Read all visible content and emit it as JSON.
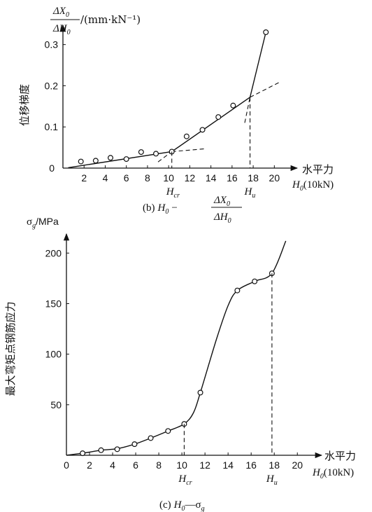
{
  "chart_data": [
    {
      "type": "scatter",
      "panel": "(b)",
      "caption": {
        "open": "(b)",
        "h": "H",
        "h_sub": "0",
        "dash": "−",
        "num": "ΔX",
        "num_sub": "0",
        "den": "ΔH",
        "den_sub": "0"
      },
      "ylabel": {
        "num": "ΔX",
        "num_sub": "0",
        "den": "ΔH",
        "den_sub": "0",
        "unit": "/(mm·kN⁻¹)",
        "side_text": "位移梯度"
      },
      "xlabel": {
        "line1": "水平力",
        "line2_var": "H",
        "line2_sub": "0",
        "line2_unit": "(10kN)"
      },
      "xlim": [
        0,
        21.5
      ],
      "ylim": [
        0,
        0.33
      ],
      "xticks": [
        2,
        4,
        6,
        8,
        10,
        12,
        14,
        16,
        18,
        20
      ],
      "yticks": [
        0,
        0.1,
        0.2,
        0.3
      ],
      "ytick_labels": [
        "0",
        "0.1",
        "0.2",
        "0.3"
      ],
      "x": [
        1.7,
        3.1,
        4.5,
        6.0,
        7.4,
        8.8,
        10.3,
        11.7,
        13.2,
        14.7,
        16.1,
        19.2
      ],
      "y": [
        0.016,
        0.018,
        0.025,
        0.022,
        0.039,
        0.035,
        0.04,
        0.077,
        0.093,
        0.124,
        0.152,
        0.33
      ],
      "fit_line": {
        "x": [
          0.5,
          10.3,
          17.7,
          19.2
        ],
        "y": [
          0.001,
          0.04,
          0.172,
          0.33
        ]
      },
      "dashed_extensions": [
        {
          "x": [
            10.3,
            13.5
          ],
          "y": [
            0.04,
            0.047
          ]
        },
        {
          "x": [
            9.0,
            10.3
          ],
          "y": [
            0.015,
            0.04
          ]
        },
        {
          "x": [
            17.7,
            20.6
          ],
          "y": [
            0.172,
            0.21
          ]
        },
        {
          "x": [
            17.2,
            17.7
          ],
          "y": [
            0.11,
            0.172
          ]
        }
      ],
      "markers": [
        {
          "x": 10.3,
          "y": 0.04,
          "var": "H",
          "sub": "cr"
        },
        {
          "x": 17.7,
          "y": 0.172,
          "var": "H",
          "sub": "u"
        }
      ]
    },
    {
      "type": "line",
      "panel": "(c)",
      "caption": {
        "open": "(c)",
        "h": "H",
        "h_sub": "0",
        "dash": "—",
        "sigma": "σ",
        "sigma_sub": "g"
      },
      "ylabel": {
        "text": "σ",
        "sub": "g",
        "unit": "/MPa",
        "side_text": "最大弯矩点钢筋应力"
      },
      "xlabel": {
        "line1": "水平力",
        "line2_var": "H",
        "line2_sub": "0",
        "line2_unit": "(10kN)"
      },
      "xlim": [
        0,
        21.5
      ],
      "ylim": [
        0,
        212
      ],
      "xticks": [
        0,
        2,
        4,
        6,
        8,
        10,
        12,
        14,
        16,
        18,
        20
      ],
      "yticks": [
        50,
        100,
        150,
        200
      ],
      "ytick_labels": [
        "50",
        "100",
        "150",
        "200"
      ],
      "x": [
        1.4,
        3.0,
        4.4,
        5.9,
        7.3,
        8.8,
        10.2,
        11.6,
        14.8,
        16.3,
        17.8
      ],
      "y": [
        2,
        5,
        6,
        11,
        17,
        24,
        31,
        62,
        163,
        172,
        180
      ],
      "curve": {
        "x": [
          0,
          1.4,
          3.0,
          4.4,
          5.9,
          7.3,
          8.8,
          10.2,
          11.0,
          11.6,
          13.0,
          14.0,
          14.8,
          16.3,
          17.8,
          19.0
        ],
        "y": [
          0,
          2,
          5,
          6.5,
          11,
          17,
          24,
          31,
          42,
          62,
          115,
          148,
          163,
          172,
          180,
          212
        ]
      },
      "markers": [
        {
          "x": 10.2,
          "y": 31,
          "var": "H",
          "sub": "cr"
        },
        {
          "x": 17.8,
          "y": 180,
          "var": "H",
          "sub": "u"
        }
      ]
    }
  ]
}
